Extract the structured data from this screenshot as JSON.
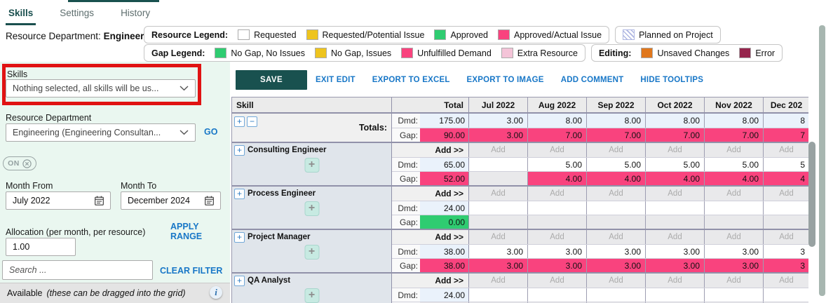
{
  "tabs": {
    "items": [
      {
        "label": "Skills",
        "active": true
      },
      {
        "label": "Settings",
        "active": false
      },
      {
        "label": "History",
        "active": false
      }
    ]
  },
  "header": {
    "dept_label": "Resource Department:",
    "dept_value": "Engineering"
  },
  "legends": {
    "resource": {
      "title": "Resource Legend:",
      "items": [
        {
          "label": "Requested",
          "color": "#FFFFFF"
        },
        {
          "label": "Requested/Potential Issue",
          "color": "#EEC41E"
        },
        {
          "label": "Approved",
          "color": "#2FCC71"
        },
        {
          "label": "Approved/Actual Issue",
          "color": "#F9437E"
        }
      ]
    },
    "planned": {
      "items": [
        {
          "label": "Planned on Project",
          "hatch": true,
          "color": "#AEB6E2"
        }
      ]
    },
    "gap": {
      "title": "Gap Legend:",
      "items": [
        {
          "label": "No Gap, No Issues",
          "color": "#2FCC71"
        },
        {
          "label": "No Gap, Issues",
          "color": "#EEC41E"
        },
        {
          "label": "Unfulfilled Demand",
          "color": "#F9437E"
        },
        {
          "label": "Extra Resource",
          "color": "#F4C4D8"
        }
      ]
    },
    "editing": {
      "title": "Editing:",
      "items": [
        {
          "label": "Unsaved Changes",
          "color": "#E0771C"
        },
        {
          "label": "Error",
          "color": "#96254D"
        }
      ]
    }
  },
  "sidebar": {
    "skills_label": "Skills",
    "skills_dropdown_value": "Nothing selected, all skills will be us...",
    "resource_department_label": "Resource Department",
    "resource_department_dropdown_value": "Engineering (Engineering Consultan...",
    "go_label": "GO",
    "toggle_label": "ON",
    "month_from_label": "Month From",
    "month_from_value": "July 2022",
    "month_to_label": "Month To",
    "month_to_value": "December 2024",
    "allocation_label": "Allocation (per month, per resource)",
    "allocation_value": "1.00",
    "apply_range_label": "APPLY RANGE",
    "search_placeholder": "Search ...",
    "clear_filter_label": "CLEAR FILTER",
    "available_label": "Available",
    "available_note": "(these can be dragged into the grid)"
  },
  "toolbar": {
    "save_label": "SAVE",
    "links": [
      "EXIT EDIT",
      "EXPORT TO EXCEL",
      "EXPORT TO IMAGE",
      "ADD COMMENT",
      "HIDE TOOLTIPS"
    ]
  },
  "grid": {
    "header": {
      "skill": "Skill",
      "total": "Total",
      "months": [
        "Jul 2022",
        "Aug 2022",
        "Sep 2022",
        "Oct 2022",
        "Nov 2022",
        "Dec 202"
      ]
    },
    "row_labels": {
      "dmd": "Dmd:",
      "gap": "Gap:"
    },
    "totals": {
      "label": "Totals:",
      "dmd_total": "175.00",
      "dmd_months": [
        "3.00",
        "8.00",
        "8.00",
        "8.00",
        "8.00",
        "8"
      ],
      "gap_total": "90.00",
      "gap_months": [
        "3.00",
        "7.00",
        "7.00",
        "7.00",
        "7.00",
        "7"
      ]
    },
    "rows": [
      {
        "name": "Consulting Engineer",
        "add_label": "Add >>",
        "add_cell": "Add",
        "dmd_total": "65.00",
        "dmd_months": [
          "",
          "5.00",
          "5.00",
          "5.00",
          "5.00",
          "5"
        ],
        "gap_total": "52.00",
        "gap_state": "issue",
        "gap_months": [
          "",
          "4.00",
          "4.00",
          "4.00",
          "4.00",
          "4"
        ]
      },
      {
        "name": "Process Engineer",
        "add_label": "Add >>",
        "add_cell": "Add",
        "dmd_total": "24.00",
        "dmd_months": [
          "",
          "",
          "",
          "",
          "",
          ""
        ],
        "gap_total": "0.00",
        "gap_state": "ok",
        "gap_months": [
          "",
          "",
          "",
          "",
          "",
          ""
        ]
      },
      {
        "name": "Project Manager",
        "add_label": "Add >>",
        "add_cell": "Add",
        "dmd_total": "38.00",
        "dmd_months": [
          "3.00",
          "3.00",
          "3.00",
          "3.00",
          "3.00",
          "3"
        ],
        "gap_total": "38.00",
        "gap_state": "issue",
        "gap_months": [
          "3.00",
          "3.00",
          "3.00",
          "3.00",
          "3.00",
          "3"
        ]
      },
      {
        "name": "QA Analyst",
        "add_label": "Add >>",
        "add_cell": "Add",
        "dmd_total": "24.00",
        "dmd_months": [
          "",
          "",
          "",
          "",
          "",
          ""
        ],
        "gap_total": "",
        "gap_state": "empty",
        "gap_months": [
          "",
          "",
          "",
          "",
          "",
          ""
        ]
      }
    ]
  },
  "colors": {
    "accent_teal": "#19514F",
    "link_blue": "#1877C7",
    "highlight_red": "#E01313",
    "gap_pink": "#F9437E",
    "gap_green": "#2FCC71",
    "legend_yellow": "#EEC41E",
    "legend_light_pink": "#F4C4D8",
    "editing_orange": "#E0771C",
    "editing_maroon": "#96254D",
    "demand_blue": "#EAF2FB",
    "sidebar_green": "#EAF7F0"
  }
}
